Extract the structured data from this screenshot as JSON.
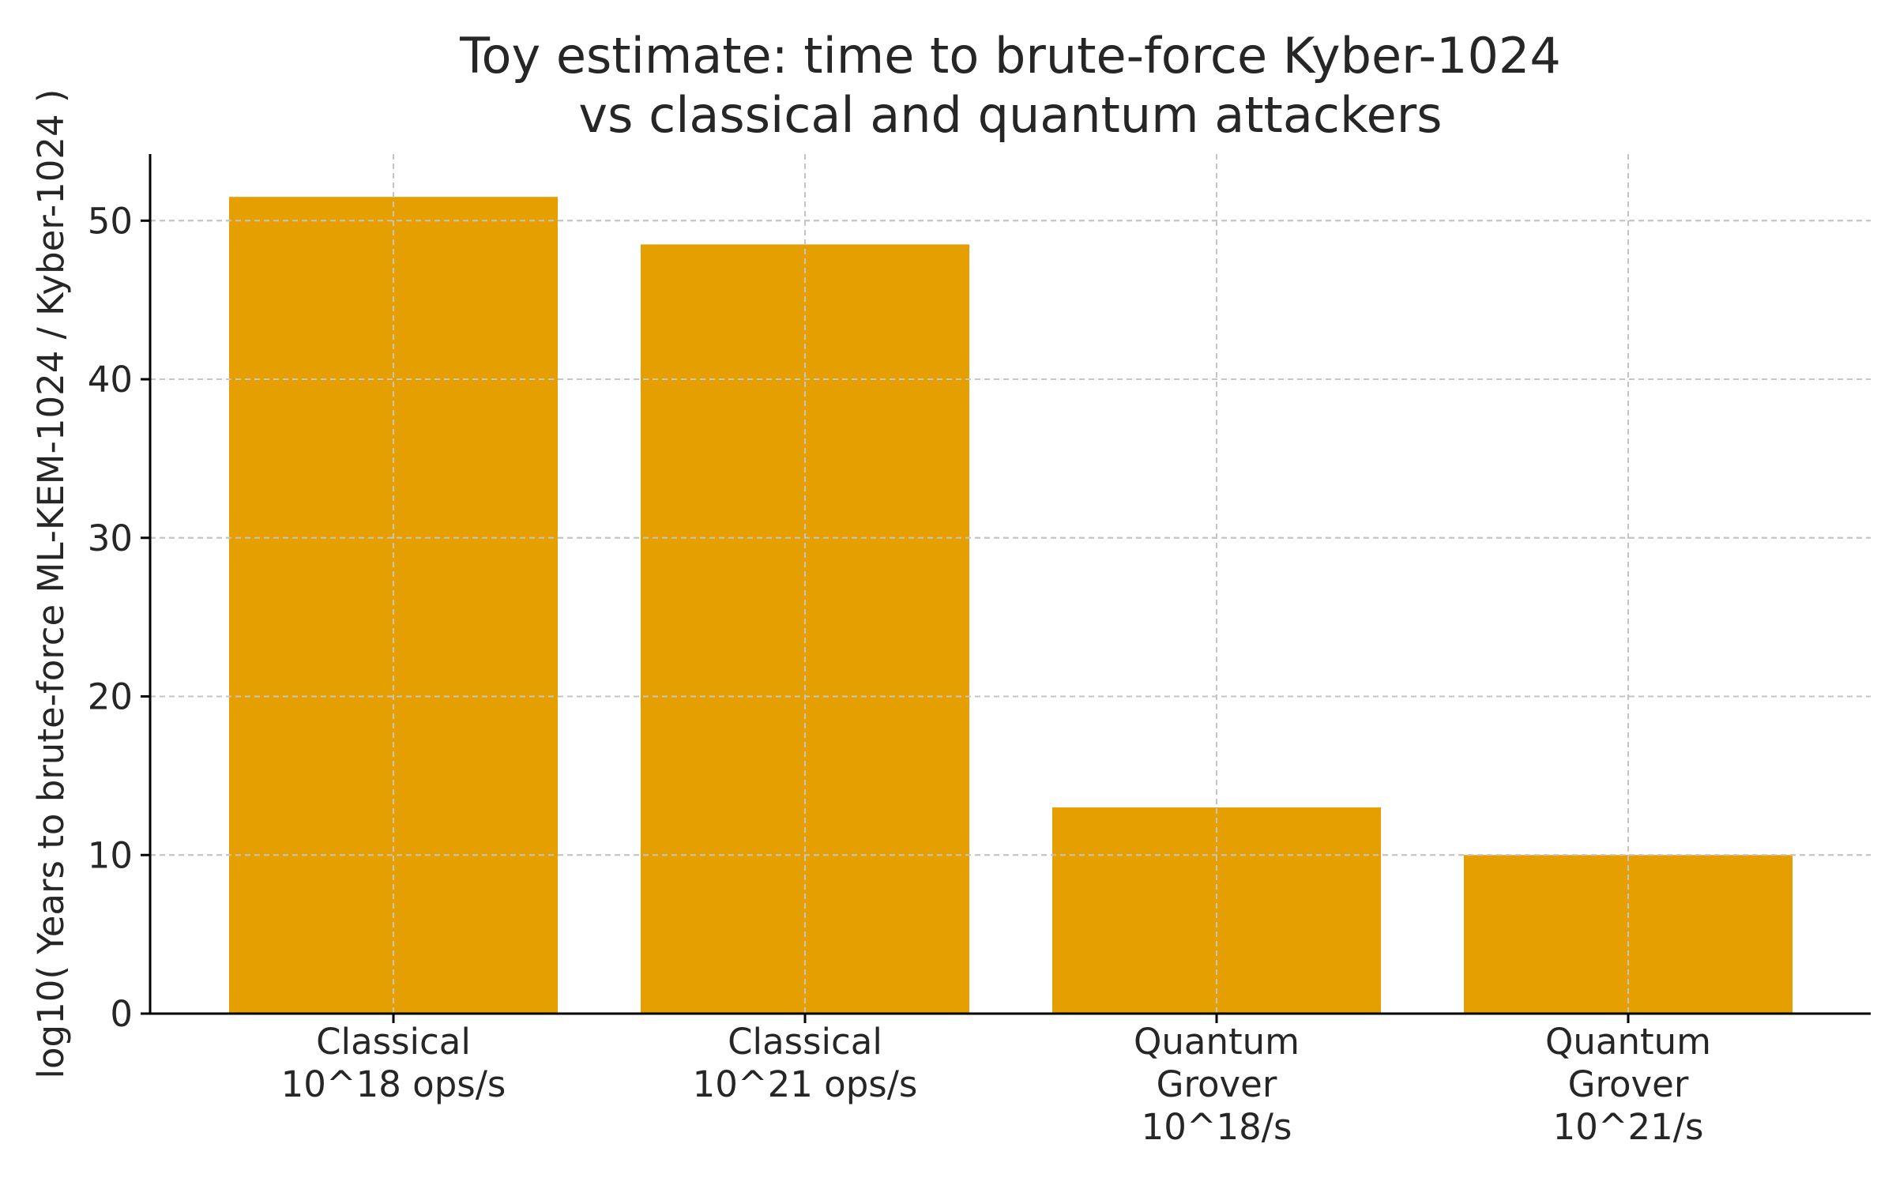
{
  "chart_data": {
    "type": "bar",
    "title": [
      "Toy estimate: time to brute-force Kyber-1024",
      "vs classical and quantum attackers"
    ],
    "xlabel": "",
    "ylabel": "log10( Years to brute-force ML-KEM-1024 / Kyber-1024 )",
    "categories": [
      [
        "Classical",
        "10^18 ops/s"
      ],
      [
        "Classical",
        "10^21 ops/s"
      ],
      [
        "Quantum",
        "Grover",
        "10^18/s"
      ],
      [
        "Quantum",
        "Grover",
        "10^21/s"
      ]
    ],
    "values": [
      51.5,
      48.5,
      13.0,
      10.0
    ],
    "ylim": [
      0,
      54.2
    ],
    "yticks": [
      0,
      10,
      20,
      30,
      40,
      50
    ],
    "grid": true,
    "bar_color": "#E69F00"
  }
}
